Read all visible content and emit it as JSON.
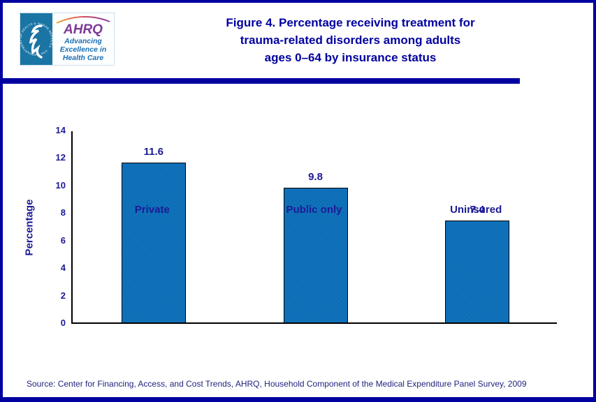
{
  "header": {
    "hhs_seal": {
      "ring_text": "DEPARTMENT OF HEALTH & HUMAN SERVICES · USA"
    },
    "ahrq_logo": {
      "acronym": "AHRQ",
      "tagline_lines": [
        "Advancing",
        "Excellence in",
        "Health Care"
      ]
    },
    "title_lines": [
      "Figure 4. Percentage receiving treatment for",
      "trauma-related disorders among adults",
      "ages 0–64 by insurance status"
    ]
  },
  "chart_data": {
    "type": "bar",
    "title": "Figure 4. Percentage receiving treatment for trauma-related disorders among adults ages 0–64 by insurance status",
    "categories": [
      "Private",
      "Public only",
      "Uninsured"
    ],
    "values": [
      11.6,
      9.8,
      7.4
    ],
    "value_labels": [
      "11.6",
      "9.8",
      "7.4"
    ],
    "xlabel": "",
    "ylabel": "Percentage",
    "ylim": [
      0,
      14
    ],
    "yticks": [
      0,
      2,
      4,
      6,
      8,
      10,
      12,
      14
    ],
    "grid": "off",
    "legend": "none",
    "bar_color": "#1173bd",
    "bar_color_alt": "#0d6cb2",
    "bar_border_color": "#000000",
    "text_color": "#1b1b96"
  },
  "footer": {
    "source": "Source: Center for Financing, Access, and Cost Trends, AHRQ, Household Component of the Medical Expenditure Panel Survey, 2009"
  },
  "colors": {
    "frame_navy": "#0000a0",
    "hhs_blue": "#1a74a4",
    "ahrq_purple": "#7d3a96",
    "tagline_blue": "#1a6fb5"
  }
}
